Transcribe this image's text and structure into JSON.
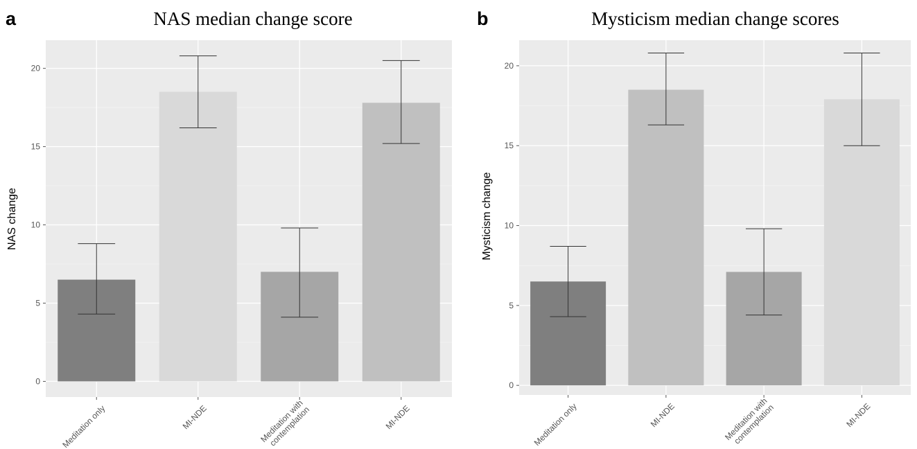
{
  "panels": [
    {
      "letter": "a",
      "chart_data": {
        "type": "bar",
        "title": "NAS median change score",
        "xlabel": "",
        "ylabel": "NAS change",
        "categories": [
          [
            "Meditation only"
          ],
          [
            "MI-NDE"
          ],
          [
            "Meditation with",
            "contemplation"
          ],
          [
            "MI-NDE"
          ]
        ],
        "values": [
          6.5,
          18.5,
          7.0,
          17.8
        ],
        "error_low": [
          4.3,
          16.2,
          4.1,
          15.2
        ],
        "error_high": [
          8.8,
          20.8,
          9.8,
          20.5
        ],
        "bar_colors": [
          "#7f7f7f",
          "#d9d9d9",
          "#a6a6a6",
          "#c0c0c0"
        ],
        "ylim": [
          -1,
          21.8
        ],
        "yticks": [
          0,
          5,
          10,
          15,
          20
        ],
        "grid": true
      }
    },
    {
      "letter": "b",
      "chart_data": {
        "type": "bar",
        "title": "Mysticism median change scores",
        "xlabel": "",
        "ylabel": "Mysticism change",
        "categories": [
          [
            "Meditation only"
          ],
          [
            "MI-NDE"
          ],
          [
            "Meditation with",
            "contemplation"
          ],
          [
            "MI-NDE"
          ]
        ],
        "values": [
          6.5,
          18.5,
          7.1,
          17.9
        ],
        "error_low": [
          4.3,
          16.3,
          4.4,
          15.0
        ],
        "error_high": [
          8.7,
          20.8,
          9.8,
          20.8
        ],
        "bar_colors": [
          "#7f7f7f",
          "#c0c0c0",
          "#a6a6a6",
          "#d9d9d9"
        ],
        "ylim": [
          -0.6,
          21.6
        ],
        "yticks": [
          0,
          5,
          10,
          15,
          20
        ],
        "grid": true
      }
    }
  ]
}
